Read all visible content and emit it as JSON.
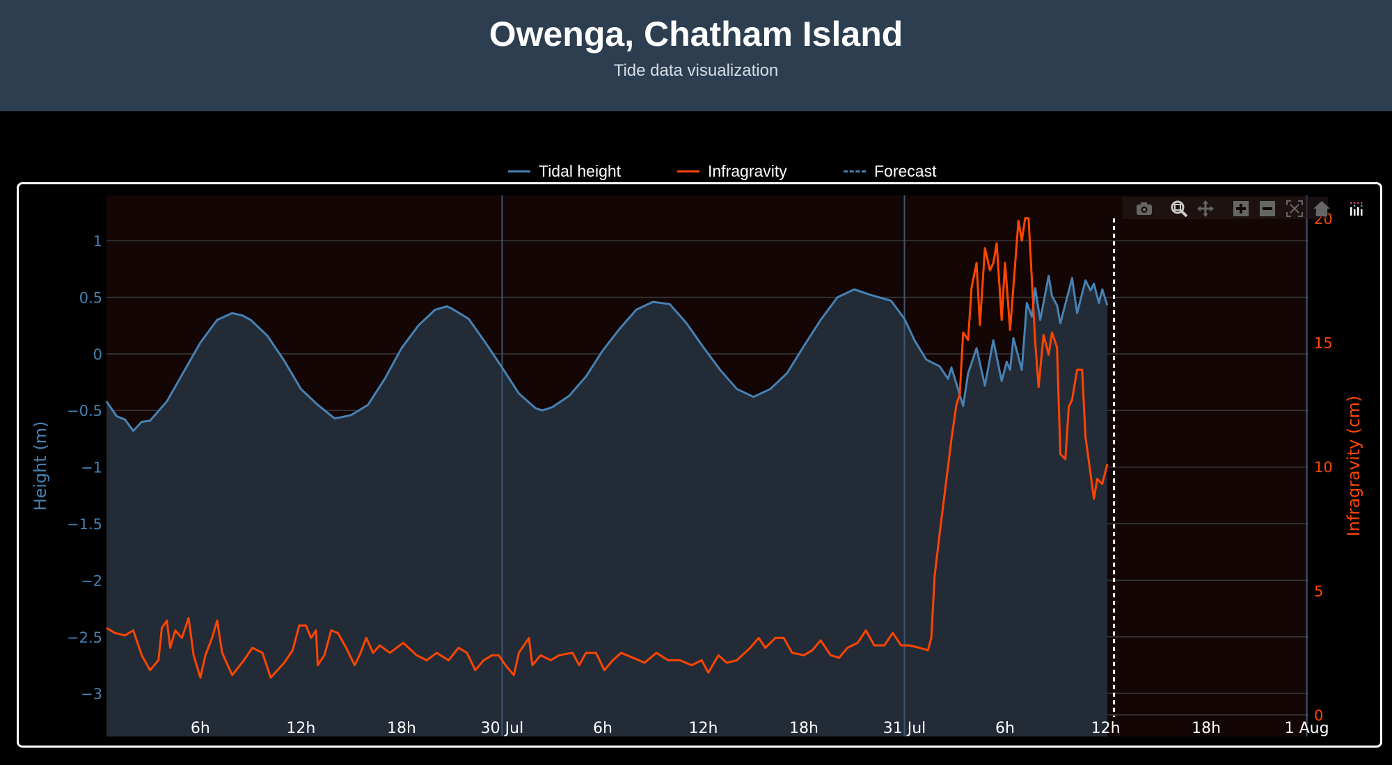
{
  "header": {
    "title": "Owenga, Chatham Island",
    "subtitle": "Tide data visualization"
  },
  "legend": [
    {
      "name": "Tidal height",
      "color": "#4682b4",
      "dash": "solid"
    },
    {
      "name": "Infragravity",
      "color": "#ff4500",
      "dash": "solid"
    },
    {
      "name": "Forecast",
      "color": "#4682b4",
      "dash": "dashed"
    }
  ],
  "modebar": [
    "camera-icon",
    "zoom-icon",
    "pan-icon",
    "zoom-in-icon",
    "zoom-out-icon",
    "autoscale-icon",
    "reset-axes-icon",
    "plotly-logo-icon"
  ],
  "chart_data": {
    "type": "line",
    "title": "Owenga, Chatham Island",
    "x_unit": "hours since 29 Jul 00:00",
    "x_range": [
      0.4,
      72.1
    ],
    "x_ticks": [
      {
        "value": 6,
        "label": "6h"
      },
      {
        "value": 12,
        "label": "12h"
      },
      {
        "value": 18,
        "label": "18h"
      },
      {
        "value": 24,
        "label": "30 Jul"
      },
      {
        "value": 30,
        "label": "6h"
      },
      {
        "value": 36,
        "label": "12h"
      },
      {
        "value": 42,
        "label": "18h"
      },
      {
        "value": 48,
        "label": "31 Jul"
      },
      {
        "value": 54,
        "label": "6h"
      },
      {
        "value": 60,
        "label": "12h"
      },
      {
        "value": 66,
        "label": "18h"
      },
      {
        "value": 72,
        "label": "1 Aug"
      }
    ],
    "day_lines": [
      24,
      48,
      72
    ],
    "y_axis": {
      "title": "Height (m)",
      "color": "#4682b4",
      "range": [
        -3.38,
        1.4
      ],
      "ticks": [
        {
          "value": 1,
          "label": "1"
        },
        {
          "value": 0.5,
          "label": "0.5"
        },
        {
          "value": 0,
          "label": "0"
        },
        {
          "value": -0.5,
          "label": "−0.5"
        },
        {
          "value": -1,
          "label": "−1"
        },
        {
          "value": -1.5,
          "label": "−1.5"
        },
        {
          "value": -2,
          "label": "−2"
        },
        {
          "value": -2.5,
          "label": "−2.5"
        },
        {
          "value": -3,
          "label": "−3"
        }
      ]
    },
    "y2_axis": {
      "title": "Infragravity (cm)",
      "color": "#ff4500",
      "range": [
        -0.87,
        20.92
      ],
      "ticks": [
        {
          "value": 0,
          "label": "0"
        },
        {
          "value": 5,
          "label": "5"
        },
        {
          "value": 10,
          "label": "10"
        },
        {
          "value": 15,
          "label": "15"
        },
        {
          "value": 20,
          "label": "20"
        }
      ]
    },
    "grid": true,
    "legend_position": "top-center",
    "series": [
      {
        "name": "Tidal height",
        "axis": "y",
        "color": "#4682b4",
        "fill": "#232b37",
        "x": [
          0.4,
          1,
          1.5,
          2,
          2.5,
          3,
          4,
          5,
          6,
          7,
          7.9,
          8.5,
          9,
          10,
          11,
          12,
          13,
          14,
          14.4,
          15,
          16,
          17,
          18,
          19,
          20,
          20.7,
          21,
          22,
          23,
          24,
          25,
          26,
          26.4,
          27,
          28,
          29,
          30,
          31,
          32,
          33,
          34,
          35,
          36,
          37,
          38,
          39,
          40,
          41,
          42,
          43,
          44,
          45,
          46,
          47.2,
          48.0,
          48.6,
          49.3,
          50.1,
          50.6,
          50.8,
          51.5,
          51.8,
          52.3,
          52.8,
          53.3,
          53.8,
          54.1,
          54.3,
          54.5,
          55.0,
          55.3,
          55.6,
          55.8,
          56.1,
          56.6,
          56.8,
          57.1,
          57.3,
          58.0,
          58.3,
          58.8,
          59.1,
          59.3,
          59.6,
          59.8,
          60.1
        ],
        "y": [
          -0.42,
          -0.55,
          -0.58,
          -0.68,
          -0.6,
          -0.59,
          -0.42,
          -0.16,
          0.1,
          0.3,
          0.36,
          0.34,
          0.3,
          0.16,
          -0.06,
          -0.31,
          -0.45,
          -0.57,
          -0.56,
          -0.54,
          -0.45,
          -0.22,
          0.05,
          0.25,
          0.39,
          0.42,
          0.4,
          0.31,
          0.1,
          -0.12,
          -0.35,
          -0.48,
          -0.5,
          -0.47,
          -0.37,
          -0.2,
          0.03,
          0.22,
          0.39,
          0.46,
          0.44,
          0.27,
          0.06,
          -0.14,
          -0.31,
          -0.38,
          -0.31,
          -0.17,
          0.07,
          0.3,
          0.5,
          0.57,
          0.52,
          0.47,
          0.31,
          0.12,
          -0.05,
          -0.11,
          -0.22,
          -0.12,
          -0.46,
          -0.17,
          0.05,
          -0.28,
          0.12,
          -0.24,
          -0.07,
          -0.14,
          0.14,
          -0.14,
          0.45,
          0.33,
          0.58,
          0.3,
          0.69,
          0.51,
          0.43,
          0.27,
          0.67,
          0.36,
          0.65,
          0.56,
          0.62,
          0.45,
          0.57,
          0.43
        ]
      },
      {
        "name": "Infragravity",
        "axis": "y2",
        "color": "#ff4500",
        "x": [
          0.4,
          0.9,
          1.5,
          2.0,
          2.5,
          3.0,
          3.5,
          3.7,
          4.0,
          4.2,
          4.5,
          4.9,
          5.3,
          5.6,
          6.0,
          6.3,
          6.7,
          7.0,
          7.3,
          7.9,
          8.6,
          9.1,
          9.7,
          10.2,
          11.0,
          11.5,
          11.9,
          12.3,
          12.6,
          12.9,
          13.0,
          13.4,
          13.8,
          14.2,
          14.7,
          15.2,
          15.5,
          15.9,
          16.3,
          16.7,
          17.3,
          18.1,
          18.9,
          19.5,
          20.1,
          20.8,
          21.4,
          21.9,
          22.4,
          22.9,
          23.4,
          23.8,
          24.2,
          24.7,
          25.0,
          25.6,
          25.8,
          26.3,
          26.9,
          27.4,
          28.2,
          28.6,
          29.0,
          29.6,
          30.1,
          30.6,
          31.1,
          31.8,
          32.5,
          33.2,
          33.9,
          34.6,
          35.3,
          35.9,
          36.3,
          36.9,
          37.4,
          38.0,
          38.8,
          39.3,
          39.7,
          40.3,
          40.8,
          41.3,
          42.0,
          42.5,
          43.0,
          43.6,
          44.1,
          44.6,
          45.2,
          45.7,
          46.2,
          46.8,
          47.3,
          47.8,
          48.3,
          48.9,
          49.4,
          49.6,
          49.8,
          50.1,
          50.6,
          50.8,
          51.1,
          51.3,
          51.5,
          51.8,
          52.0,
          52.3,
          52.5,
          52.8,
          53.1,
          53.3,
          53.5,
          53.8,
          54.0,
          54.3,
          54.8,
          55.0,
          55.2,
          55.4,
          55.6,
          55.8,
          56.0,
          56.3,
          56.6,
          56.8,
          57.1,
          57.3,
          57.6,
          57.8,
          58.0,
          58.3,
          58.6,
          58.8,
          59.0,
          59.3,
          59.5,
          59.8,
          60.1
        ],
        "y": [
          3.5,
          3.3,
          3.2,
          3.4,
          2.4,
          1.8,
          2.2,
          3.5,
          3.8,
          2.7,
          3.4,
          3.1,
          3.9,
          2.4,
          1.5,
          2.4,
          3.1,
          3.8,
          2.5,
          1.6,
          2.2,
          2.7,
          2.5,
          1.5,
          2.1,
          2.6,
          3.6,
          3.6,
          3.1,
          3.4,
          2.0,
          2.4,
          3.4,
          3.3,
          2.7,
          2.0,
          2.4,
          3.1,
          2.5,
          2.8,
          2.5,
          2.9,
          2.4,
          2.2,
          2.5,
          2.2,
          2.7,
          2.5,
          1.8,
          2.2,
          2.4,
          2.4,
          2.0,
          1.6,
          2.5,
          3.1,
          2.0,
          2.4,
          2.2,
          2.4,
          2.5,
          2.0,
          2.5,
          2.5,
          1.8,
          2.2,
          2.5,
          2.3,
          2.1,
          2.5,
          2.2,
          2.2,
          2.0,
          2.2,
          1.7,
          2.4,
          2.1,
          2.2,
          2.7,
          3.1,
          2.7,
          3.1,
          3.1,
          2.5,
          2.4,
          2.6,
          3.0,
          2.4,
          2.3,
          2.7,
          2.9,
          3.4,
          2.8,
          2.8,
          3.3,
          2.8,
          2.8,
          2.7,
          2.6,
          3.1,
          5.6,
          7.3,
          10.0,
          11.1,
          12.5,
          12.9,
          15.4,
          15.1,
          17.2,
          18.2,
          15.7,
          18.8,
          17.9,
          18.2,
          19.0,
          15.9,
          18.2,
          15.5,
          19.9,
          19.1,
          20.0,
          20.0,
          17.5,
          15.0,
          13.2,
          15.3,
          14.5,
          15.4,
          14.8,
          10.5,
          10.3,
          12.4,
          12.7,
          13.9,
          13.9,
          11.2,
          10.2,
          8.7,
          9.5,
          9.3,
          10.1
        ]
      }
    ],
    "forecast": {
      "name": "Forecast",
      "x": 60.5,
      "color": "#ffffff"
    }
  }
}
